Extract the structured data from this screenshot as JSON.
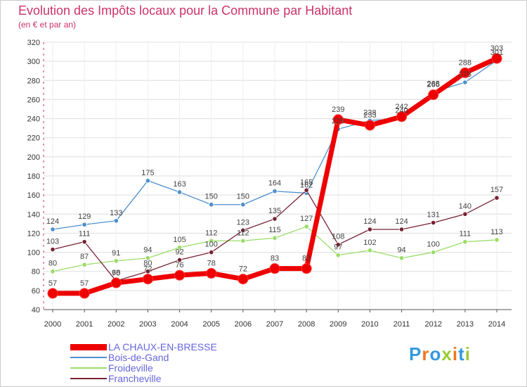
{
  "title": "Evolution des Impôts locaux pour la Commune par Habitant",
  "subtitle": "(en € et par an)",
  "logo_text": "Proxiti",
  "chart_data": {
    "type": "line",
    "title": "Evolution des Impôts locaux pour la Commune par Habitant",
    "ylabel": "(en € et par an)",
    "xlabel": "",
    "x": [
      "2000",
      "2001",
      "2002",
      "2003",
      "2004",
      "2005",
      "2006",
      "2007",
      "2008",
      "2009",
      "2010",
      "2011",
      "2012",
      "2013",
      "2014"
    ],
    "ylim": [
      40,
      320
    ],
    "yticks": [
      40,
      60,
      80,
      100,
      120,
      140,
      160,
      180,
      200,
      220,
      240,
      260,
      280,
      300,
      320
    ],
    "series": [
      {
        "name": "LA CHAUX-EN-BRESSE",
        "color": "#ee0000",
        "values": [
          57,
          57,
          68,
          72,
          76,
          78,
          72,
          83,
          83,
          239,
          233,
          242,
          265,
          288,
          303
        ]
      },
      {
        "name": "Bois-de-Gand",
        "color": "#4d8fcc",
        "values": [
          124,
          129,
          133,
          175,
          163,
          150,
          150,
          164,
          162,
          229,
          238,
          240,
          268,
          278,
          301
        ]
      },
      {
        "name": "Froideville",
        "color": "#99dd66",
        "values": [
          80,
          87,
          91,
          94,
          105,
          112,
          112,
          115,
          127,
          97,
          102,
          94,
          100,
          111,
          113
        ]
      },
      {
        "name": "Francheville",
        "color": "#772233",
        "values": [
          103,
          111,
          70,
          80,
          92,
          100,
          123,
          135,
          165,
          108,
          124,
          124,
          131,
          140,
          157
        ]
      }
    ],
    "legend_position": "bottom-left",
    "grid": true
  }
}
